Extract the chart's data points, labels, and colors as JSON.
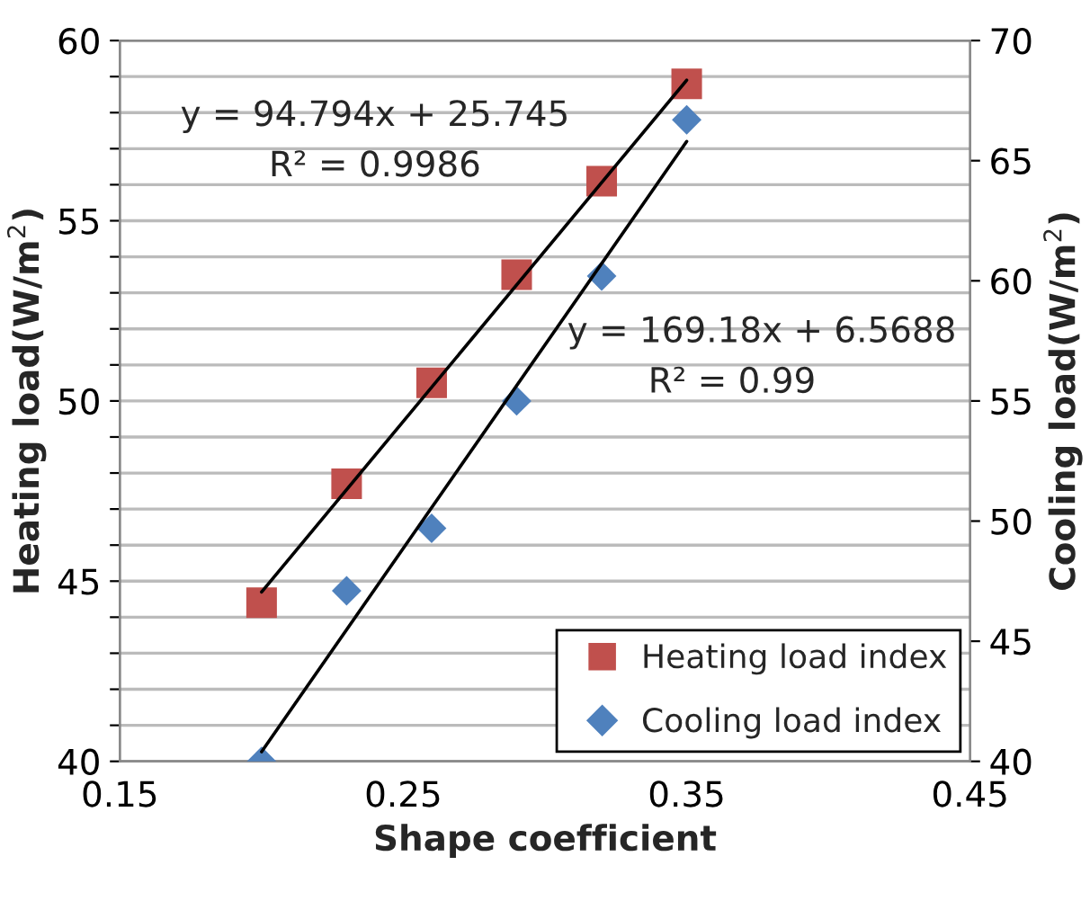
{
  "chart_data": {
    "type": "scatter",
    "xlabel": "Shape coefficient",
    "ylabel": "Heating load(W/m$^{2}$)",
    "y2label": "Cooling load(W/m$^{2}$)",
    "xlim": [
      0.15,
      0.45
    ],
    "xticks": [
      0.15,
      0.25,
      0.35,
      0.45
    ],
    "ylim": [
      40,
      60
    ],
    "yticks": [
      40,
      {
        "value": 41,
        "label": null
      },
      {
        "value": 42,
        "label": null
      },
      {
        "value": 43,
        "label": null
      },
      {
        "value": 44,
        "label": null
      },
      45,
      {
        "value": 46,
        "label": null
      },
      {
        "value": 47,
        "label": null
      },
      {
        "value": 48,
        "label": null
      },
      {
        "value": 49,
        "label": null
      },
      50,
      {
        "value": 51,
        "label": null
      },
      {
        "value": 52,
        "label": null
      },
      {
        "value": 53,
        "label": null
      },
      {
        "value": 54,
        "label": null
      },
      55,
      {
        "value": 56,
        "label": null
      },
      {
        "value": 57,
        "label": null
      },
      {
        "value": 58,
        "label": null
      },
      {
        "value": 59,
        "label": null
      },
      60
    ],
    "y2lim": [
      40,
      70
    ],
    "y2ticks": [
      40,
      45,
      50,
      55,
      60,
      65,
      70
    ],
    "grid": "y",
    "legend": "bottom right",
    "series": [
      {
        "name": "Heating load index",
        "color": "#c0504d",
        "marker": "square",
        "x": [
          0.2,
          0.23,
          0.26,
          0.29,
          0.32,
          0.35
        ],
        "values": [
          44.4,
          47.7,
          50.5,
          53.5,
          56.1,
          58.8
        ]
      },
      {
        "name": "Cooling load index",
        "color": "#4f81bd",
        "marker": "diamond",
        "axis": "y2",
        "x": [
          0.2,
          0.23,
          0.26,
          0.29,
          0.32,
          0.35
        ],
        "values": [
          40.0,
          47.1,
          49.7,
          55.0,
          60.2,
          66.7
        ]
      },
      {
        "type": "line",
        "color": "#000000",
        "x": [
          0.2,
          0.35
        ],
        "values": [
          44.7,
          58.9
        ]
      },
      {
        "type": "line",
        "color": "#000000",
        "axis": "y2",
        "x": [
          0.2,
          0.35
        ],
        "values": [
          40.4,
          65.8
        ]
      }
    ],
    "annotations": [
      "y = 94.794x + 25.745",
      "R² = 0.9986",
      "y = 169.18x + 6.5688",
      "R² = 0.99"
    ]
  }
}
